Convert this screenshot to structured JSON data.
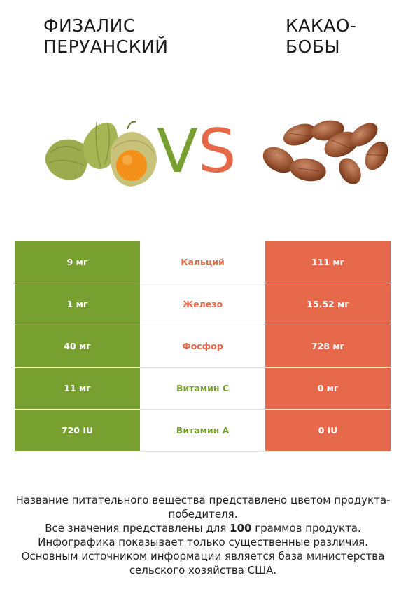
{
  "header": {
    "left_title": "Физалис\nперуанский",
    "right_title": "Какао-\nбобы",
    "vs_v": "V",
    "vs_s": "S"
  },
  "colors": {
    "left": "#78a030",
    "right": "#e5694a"
  },
  "rows": [
    {
      "left": "9 мг",
      "nutrient": "Кальций",
      "right": "111 мг",
      "winner": "right"
    },
    {
      "left": "1 мг",
      "nutrient": "Железо",
      "right": "15.52 мг",
      "winner": "right"
    },
    {
      "left": "40 мг",
      "nutrient": "Фосфор",
      "right": "728 мг",
      "winner": "right"
    },
    {
      "left": "11 мг",
      "nutrient": "Витамин C",
      "right": "0 мг",
      "winner": "left"
    },
    {
      "left": "720 IU",
      "nutrient": "Витамин A",
      "right": "0 IU",
      "winner": "left"
    }
  ],
  "footer": {
    "line1": "Название питательного вещества представлено цветом продукта-победителя.",
    "line2_pre": "Все значения представлены для ",
    "line2_bold": "100",
    "line2_post": " граммов продукта.",
    "line3": "Инфографика показывает только существенные различия.",
    "line4": "Основным источником информации является база министерства сельского хозяйства США."
  }
}
